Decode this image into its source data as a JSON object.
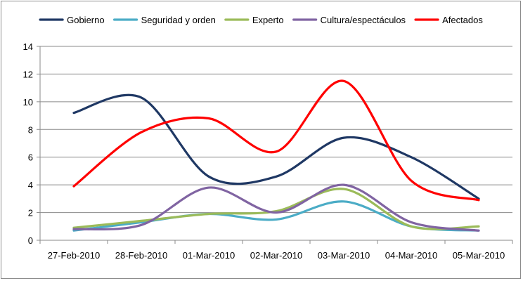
{
  "chart_data": {
    "type": "line",
    "title": "",
    "xlabel": "",
    "ylabel": "",
    "ylim": [
      0,
      14
    ],
    "yticks": [
      "0",
      "2",
      "4",
      "6",
      "8",
      "10",
      "12",
      "14"
    ],
    "grid": true,
    "smooth": true,
    "legend_position": "top",
    "categories": [
      "27-Feb-2010",
      "28-Feb-2010",
      "01-Mar-2010",
      "02-Mar-2010",
      "03-Mar-2010",
      "04-Mar-2010",
      "05-Mar-2010"
    ],
    "series": [
      {
        "name": "Gobierno",
        "color": "#1f3864",
        "values": [
          9.2,
          10.3,
          4.6,
          4.6,
          7.4,
          6.0,
          3.0
        ]
      },
      {
        "name": "Seguridad y orden",
        "color": "#4bacc6",
        "values": [
          0.7,
          1.3,
          1.9,
          1.5,
          2.8,
          1.0,
          0.7
        ]
      },
      {
        "name": "Experto",
        "color": "#9bbb59",
        "values": [
          0.9,
          1.4,
          1.9,
          2.1,
          3.7,
          1.0,
          1.0
        ]
      },
      {
        "name": "Cultura/espectáculos",
        "color": "#8064a2",
        "values": [
          0.8,
          1.1,
          3.8,
          2.0,
          4.0,
          1.3,
          0.7
        ]
      },
      {
        "name": "Afectados",
        "color": "#ff0000",
        "values": [
          3.9,
          7.8,
          8.8,
          6.4,
          11.5,
          4.3,
          2.9
        ]
      }
    ]
  }
}
